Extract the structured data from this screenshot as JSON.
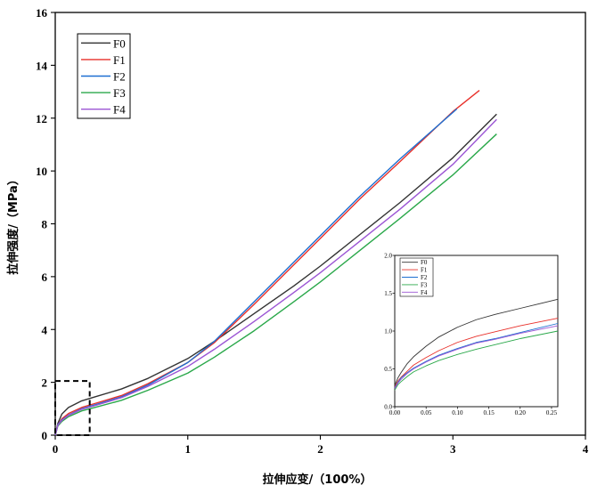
{
  "chart_data": [
    {
      "type": "line",
      "title": "",
      "xlabel": "拉伸应变/（100%）",
      "ylabel": "拉伸强度/（MPa）",
      "xlim": [
        0,
        4
      ],
      "ylim": [
        0,
        16
      ],
      "xticks": [
        0,
        1,
        2,
        3,
        4
      ],
      "yticks": [
        0,
        2,
        4,
        6,
        8,
        10,
        12,
        14,
        16
      ],
      "xtick_labels": [
        "0",
        "1",
        "2",
        "3",
        "4"
      ],
      "ytick_labels": [
        "0",
        "2",
        "4",
        "6",
        "8",
        "10",
        "12",
        "14",
        "16"
      ],
      "legend_position": "top-left",
      "grid": false,
      "series": [
        {
          "name": "F0",
          "color": "#333333",
          "x": [
            0,
            0.02,
            0.05,
            0.1,
            0.2,
            0.3,
            0.5,
            0.7,
            1.0,
            1.2,
            1.5,
            1.8,
            2.0,
            2.3,
            2.6,
            3.0,
            3.33
          ],
          "y": [
            0,
            0.45,
            0.8,
            1.05,
            1.3,
            1.45,
            1.75,
            2.15,
            2.9,
            3.55,
            4.6,
            5.65,
            6.4,
            7.6,
            8.8,
            10.5,
            12.15
          ]
        },
        {
          "name": "F1",
          "color": "#e8302a",
          "x": [
            0,
            0.02,
            0.05,
            0.1,
            0.2,
            0.3,
            0.5,
            0.7,
            1.0,
            1.2,
            1.5,
            1.8,
            2.0,
            2.3,
            2.6,
            3.0,
            3.2
          ],
          "y": [
            0,
            0.4,
            0.62,
            0.82,
            1.05,
            1.2,
            1.5,
            1.95,
            2.75,
            3.5,
            4.95,
            6.45,
            7.45,
            8.95,
            10.35,
            12.25,
            13.05
          ]
        },
        {
          "name": "F2",
          "color": "#1d6fd1",
          "x": [
            0,
            0.02,
            0.05,
            0.1,
            0.2,
            0.3,
            0.5,
            0.7,
            1.0,
            1.2,
            1.5,
            1.8,
            2.0,
            2.3,
            2.6,
            3.03
          ],
          "y": [
            0,
            0.4,
            0.58,
            0.76,
            1.0,
            1.15,
            1.45,
            1.9,
            2.75,
            3.55,
            5.05,
            6.55,
            7.55,
            9.05,
            10.45,
            12.35
          ]
        },
        {
          "name": "F3",
          "color": "#2aa84a",
          "x": [
            0,
            0.02,
            0.05,
            0.1,
            0.2,
            0.3,
            0.5,
            0.7,
            1.0,
            1.2,
            1.5,
            1.8,
            2.0,
            2.3,
            2.6,
            3.0,
            3.33
          ],
          "y": [
            0,
            0.35,
            0.52,
            0.7,
            0.92,
            1.05,
            1.32,
            1.7,
            2.35,
            2.95,
            3.95,
            5.05,
            5.8,
            7.0,
            8.2,
            9.85,
            11.4
          ]
        },
        {
          "name": "F4",
          "color": "#9b55d4",
          "x": [
            0,
            0.02,
            0.05,
            0.1,
            0.2,
            0.3,
            0.5,
            0.7,
            1.0,
            1.2,
            1.5,
            1.8,
            2.0,
            2.3,
            2.6,
            3.0,
            3.33
          ],
          "y": [
            0,
            0.38,
            0.56,
            0.75,
            0.98,
            1.12,
            1.42,
            1.85,
            2.6,
            3.25,
            4.3,
            5.4,
            6.15,
            7.35,
            8.55,
            10.25,
            11.95
          ]
        }
      ]
    },
    {
      "type": "line",
      "title": "",
      "xlabel": "",
      "ylabel": "",
      "xlim": [
        0,
        0.26
      ],
      "ylim": [
        0,
        2.0
      ],
      "xticks": [
        0,
        0.05,
        0.1,
        0.15,
        0.2,
        0.25
      ],
      "yticks": [
        0,
        0.5,
        1.0,
        1.5,
        2.0
      ],
      "xtick_labels": [
        "0.00",
        "0.05",
        "0.10",
        "0.15",
        "0.20",
        "0.25"
      ],
      "ytick_labels": [
        "0.0",
        "0.5",
        "1.0",
        "1.5",
        "2.0"
      ],
      "legend_position": "top-left",
      "grid": false,
      "series": [
        {
          "name": "F0",
          "color": "#333333",
          "x": [
            0,
            0.005,
            0.01,
            0.02,
            0.03,
            0.05,
            0.07,
            0.1,
            0.13,
            0.16,
            0.2,
            0.23,
            0.26
          ],
          "y": [
            0.28,
            0.38,
            0.45,
            0.57,
            0.66,
            0.8,
            0.92,
            1.05,
            1.15,
            1.22,
            1.3,
            1.36,
            1.42
          ]
        },
        {
          "name": "F1",
          "color": "#e8302a",
          "x": [
            0,
            0.005,
            0.01,
            0.02,
            0.03,
            0.05,
            0.07,
            0.1,
            0.13,
            0.16,
            0.2,
            0.23,
            0.26
          ],
          "y": [
            0.26,
            0.34,
            0.39,
            0.47,
            0.55,
            0.65,
            0.74,
            0.85,
            0.93,
            0.99,
            1.07,
            1.12,
            1.17
          ]
        },
        {
          "name": "F2",
          "color": "#1d6fd1",
          "x": [
            0,
            0.005,
            0.01,
            0.02,
            0.03,
            0.05,
            0.07,
            0.1,
            0.13,
            0.16,
            0.2,
            0.23,
            0.26
          ],
          "y": [
            0.25,
            0.32,
            0.38,
            0.45,
            0.51,
            0.6,
            0.68,
            0.77,
            0.85,
            0.9,
            0.98,
            1.04,
            1.1
          ]
        },
        {
          "name": "F3",
          "color": "#2aa84a",
          "x": [
            0,
            0.005,
            0.01,
            0.02,
            0.03,
            0.05,
            0.07,
            0.1,
            0.13,
            0.16,
            0.2,
            0.23,
            0.26
          ],
          "y": [
            0.22,
            0.29,
            0.33,
            0.4,
            0.46,
            0.54,
            0.61,
            0.69,
            0.76,
            0.82,
            0.9,
            0.95,
            1.0
          ]
        },
        {
          "name": "F4",
          "color": "#9b55d4",
          "x": [
            0,
            0.005,
            0.01,
            0.02,
            0.03,
            0.05,
            0.07,
            0.1,
            0.13,
            0.16,
            0.2,
            0.23,
            0.26
          ],
          "y": [
            0.24,
            0.31,
            0.36,
            0.44,
            0.5,
            0.59,
            0.67,
            0.76,
            0.84,
            0.89,
            0.97,
            1.02,
            1.07
          ]
        }
      ]
    }
  ]
}
